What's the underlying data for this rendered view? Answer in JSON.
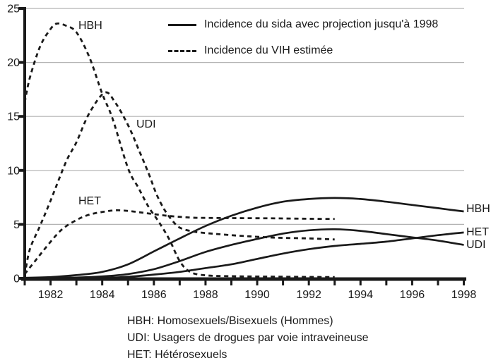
{
  "colors": {
    "line": "#1a1a1a",
    "grid": "#b3b3b3",
    "text": "#1a1a1a",
    "background": "#ffffff"
  },
  "chart_data": {
    "type": "line",
    "title": "",
    "xlabel": "",
    "ylabel": "",
    "x_axis": {
      "min": 1981,
      "max": 1998,
      "tick_every": 1,
      "label_years": [
        1982,
        1984,
        1986,
        1988,
        1990,
        1992,
        1994,
        1996,
        1998
      ]
    },
    "y_axis": {
      "min": 0,
      "max": 25,
      "tick_values": [
        0,
        5,
        10,
        15,
        20,
        25
      ]
    },
    "grid": {
      "horizontal": true,
      "values": [
        5,
        10,
        15,
        20,
        25
      ]
    },
    "legend": [
      {
        "style": "solid",
        "label": "Incidence du sida avec projection jusqu'à 1998"
      },
      {
        "style": "dashed",
        "label": "Incidence du VIH estimée"
      }
    ],
    "series": [
      {
        "name": "HBH sida (solide)",
        "group": "HBH",
        "style": "solid",
        "points": [
          [
            1981,
            0.05
          ],
          [
            1982,
            0.12
          ],
          [
            1983,
            0.3
          ],
          [
            1984,
            0.6
          ],
          [
            1985,
            1.3
          ],
          [
            1986,
            2.5
          ],
          [
            1986.5,
            3.1
          ],
          [
            1987,
            3.7
          ],
          [
            1988,
            4.85
          ],
          [
            1989,
            5.8
          ],
          [
            1990,
            6.55
          ],
          [
            1991,
            7.1
          ],
          [
            1992,
            7.35
          ],
          [
            1993,
            7.45
          ],
          [
            1994,
            7.35
          ],
          [
            1995,
            7.1
          ],
          [
            1996,
            6.8
          ],
          [
            1997,
            6.5
          ],
          [
            1998,
            6.2
          ]
        ]
      },
      {
        "name": "UDI sida (solide)",
        "group": "UDI",
        "style": "solid",
        "points": [
          [
            1981,
            0.02
          ],
          [
            1983,
            0.08
          ],
          [
            1984,
            0.18
          ],
          [
            1985,
            0.4
          ],
          [
            1986,
            0.85
          ],
          [
            1987,
            1.6
          ],
          [
            1988,
            2.45
          ],
          [
            1989,
            3.1
          ],
          [
            1990,
            3.65
          ],
          [
            1991,
            4.15
          ],
          [
            1992,
            4.45
          ],
          [
            1993,
            4.55
          ],
          [
            1994,
            4.4
          ],
          [
            1995,
            4.1
          ],
          [
            1996,
            3.8
          ],
          [
            1997,
            3.5
          ],
          [
            1998,
            3.1
          ]
        ]
      },
      {
        "name": "HET sida (solide)",
        "group": "HET",
        "style": "solid",
        "points": [
          [
            1981,
            0.01
          ],
          [
            1984,
            0.06
          ],
          [
            1985,
            0.15
          ],
          [
            1986,
            0.35
          ],
          [
            1987,
            0.6
          ],
          [
            1988,
            0.95
          ],
          [
            1989,
            1.3
          ],
          [
            1990,
            1.8
          ],
          [
            1991,
            2.3
          ],
          [
            1992,
            2.7
          ],
          [
            1993,
            3.0
          ],
          [
            1994,
            3.2
          ],
          [
            1995,
            3.4
          ],
          [
            1996,
            3.7
          ],
          [
            1997,
            4.0
          ],
          [
            1998,
            4.25
          ]
        ]
      },
      {
        "name": "HBH VIH (pointillé)",
        "group": "HBH",
        "style": "dashed",
        "points": [
          [
            1981,
            16.3
          ],
          [
            1981.2,
            18.6
          ],
          [
            1981.6,
            21.5
          ],
          [
            1982,
            23.1
          ],
          [
            1982.25,
            23.6
          ],
          [
            1982.6,
            23.4
          ],
          [
            1983,
            22.8
          ],
          [
            1983.5,
            20.5
          ],
          [
            1984,
            17.1
          ],
          [
            1984.4,
            14.8
          ],
          [
            1985,
            10.2
          ],
          [
            1985.4,
            8.4
          ],
          [
            1985.8,
            6.6
          ],
          [
            1986.2,
            5.2
          ],
          [
            1986.6,
            3.6
          ],
          [
            1987,
            1.6
          ],
          [
            1987.4,
            0.6
          ],
          [
            1988,
            0.28
          ],
          [
            1989,
            0.2
          ],
          [
            1990,
            0.17
          ],
          [
            1991,
            0.15
          ],
          [
            1992,
            0.13
          ],
          [
            1993,
            0.12
          ]
        ]
      },
      {
        "name": "UDI VIH (pointillé)",
        "group": "UDI",
        "style": "dashed",
        "points": [
          [
            1981,
            0.3
          ],
          [
            1981.2,
            2.7
          ],
          [
            1981.6,
            4.9
          ],
          [
            1982,
            7.2
          ],
          [
            1982.6,
            10.8
          ],
          [
            1983,
            12.6
          ],
          [
            1983.5,
            15.3
          ],
          [
            1984.1,
            17.2
          ],
          [
            1984.5,
            16.3
          ],
          [
            1985,
            14.2
          ],
          [
            1985.4,
            12.0
          ],
          [
            1985.8,
            9.7
          ],
          [
            1986.1,
            7.8
          ],
          [
            1986.4,
            6.4
          ],
          [
            1986.7,
            5.4
          ],
          [
            1987,
            4.7
          ],
          [
            1987.5,
            4.35
          ],
          [
            1988,
            4.2
          ],
          [
            1989,
            4.0
          ],
          [
            1990,
            3.85
          ],
          [
            1991,
            3.75
          ],
          [
            1992,
            3.7
          ],
          [
            1993,
            3.6
          ]
        ]
      },
      {
        "name": "HET VIH (pointillé)",
        "group": "HET",
        "style": "dashed",
        "points": [
          [
            1981,
            0.4
          ],
          [
            1981.4,
            1.6
          ],
          [
            1981.8,
            2.8
          ],
          [
            1982.4,
            4.45
          ],
          [
            1983,
            5.4
          ],
          [
            1983.5,
            5.9
          ],
          [
            1984,
            6.15
          ],
          [
            1984.5,
            6.3
          ],
          [
            1985,
            6.25
          ],
          [
            1985.5,
            6.1
          ],
          [
            1986,
            5.95
          ],
          [
            1986.5,
            5.8
          ],
          [
            1987,
            5.7
          ],
          [
            1987.5,
            5.62
          ],
          [
            1988,
            5.6
          ],
          [
            1989,
            5.58
          ],
          [
            1990,
            5.57
          ],
          [
            1991,
            5.55
          ],
          [
            1992,
            5.52
          ],
          [
            1993,
            5.5
          ]
        ]
      }
    ],
    "annotations": {
      "hbh_peak": "HBH",
      "udi_mid": "UDI",
      "het_mid": "HET",
      "hbh_right": "HBH",
      "het_right": "HET",
      "udi_right": "UDI"
    },
    "footnotes": [
      "HBH: Homosexuels/Bisexuels (Hommes)",
      "UDI: Usagers de drogues par voie intraveineuse",
      "HET: Hétérosexuels"
    ]
  }
}
